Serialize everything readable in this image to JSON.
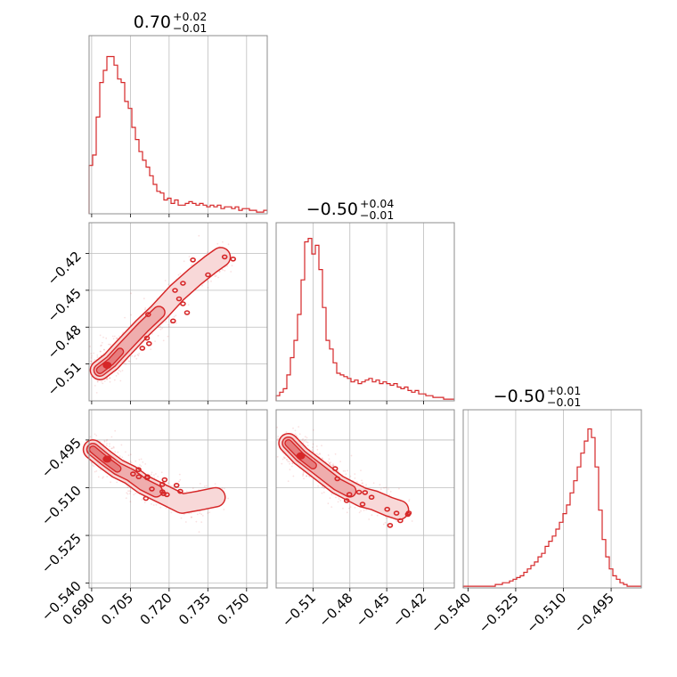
{
  "chart_data": {
    "type": "corner",
    "color": "#d62728",
    "grid": true,
    "parameters": [
      {
        "id": "p0",
        "title": {
          "median": "0.70",
          "upper": "+0.02",
          "lower": "−0.01"
        },
        "range": [
          0.689,
          0.758
        ],
        "ticks": [
          {
            "v": 0.69,
            "label": "0.690"
          },
          {
            "v": 0.705,
            "label": "0.705"
          },
          {
            "v": 0.72,
            "label": "0.720"
          },
          {
            "v": 0.735,
            "label": "0.735"
          },
          {
            "v": 0.75,
            "label": "0.750"
          }
        ],
        "histogram": {
          "start": 0.689,
          "bin_width": 0.00138,
          "counts": [
            0.28,
            0.34,
            0.56,
            0.76,
            0.83,
            0.91,
            0.91,
            0.86,
            0.78,
            0.76,
            0.65,
            0.61,
            0.5,
            0.43,
            0.36,
            0.31,
            0.27,
            0.22,
            0.17,
            0.13,
            0.12,
            0.08,
            0.09,
            0.06,
            0.08,
            0.05,
            0.05,
            0.06,
            0.07,
            0.06,
            0.05,
            0.06,
            0.05,
            0.04,
            0.05,
            0.04,
            0.05,
            0.03,
            0.04,
            0.04,
            0.03,
            0.04,
            0.02,
            0.03,
            0.03,
            0.02,
            0.02,
            0.01,
            0.01,
            0.02
          ]
        }
      },
      {
        "id": "p1",
        "title": {
          "median": "−0.50",
          "upper": "+0.04",
          "lower": "−0.01"
        },
        "range": [
          -0.54,
          -0.395
        ],
        "ticks": [
          {
            "v": -0.51,
            "label": "−0.51"
          },
          {
            "v": -0.48,
            "label": "−0.48"
          },
          {
            "v": -0.45,
            "label": "−0.45"
          },
          {
            "v": -0.42,
            "label": "−0.42"
          }
        ],
        "histogram": {
          "start": -0.54,
          "bin_width": 0.0029,
          "counts": [
            0.03,
            0.05,
            0.07,
            0.15,
            0.25,
            0.35,
            0.5,
            0.7,
            0.92,
            0.94,
            0.85,
            0.9,
            0.76,
            0.54,
            0.35,
            0.3,
            0.22,
            0.16,
            0.15,
            0.14,
            0.13,
            0.11,
            0.12,
            0.1,
            0.11,
            0.12,
            0.13,
            0.11,
            0.12,
            0.1,
            0.11,
            0.1,
            0.09,
            0.1,
            0.08,
            0.07,
            0.08,
            0.06,
            0.05,
            0.06,
            0.04,
            0.04,
            0.03,
            0.03,
            0.02,
            0.02,
            0.02,
            0.01,
            0.01,
            0.01
          ]
        }
      },
      {
        "id": "p2",
        "title": {
          "median": "−0.50",
          "upper": "+0.01",
          "lower": "−0.01"
        },
        "range": [
          -0.5415,
          -0.4855
        ],
        "ticks": [
          {
            "v": -0.54,
            "label": "−0.540"
          },
          {
            "v": -0.525,
            "label": "−0.525"
          },
          {
            "v": -0.51,
            "label": "−0.510"
          },
          {
            "v": -0.495,
            "label": "−0.495"
          }
        ],
        "histogram": {
          "start": -0.5415,
          "bin_width": 0.00112,
          "counts": [
            0.01,
            0.01,
            0.01,
            0.01,
            0.01,
            0.01,
            0.01,
            0.01,
            0.01,
            0.02,
            0.02,
            0.03,
            0.03,
            0.04,
            0.05,
            0.06,
            0.07,
            0.09,
            0.11,
            0.13,
            0.15,
            0.18,
            0.2,
            0.24,
            0.27,
            0.3,
            0.34,
            0.38,
            0.43,
            0.48,
            0.55,
            0.62,
            0.7,
            0.78,
            0.85,
            0.92,
            0.87,
            0.7,
            0.45,
            0.28,
            0.18,
            0.11,
            0.07,
            0.05,
            0.03,
            0.02,
            0.01,
            0.01,
            0.01,
            0.01
          ]
        }
      }
    ],
    "pairs": [
      {
        "x": 0,
        "y": 1,
        "points": [
          [
            0.6932,
            -0.515
          ],
          [
            0.6975,
            -0.508
          ],
          [
            0.701,
            -0.5
          ],
          [
            0.7055,
            -0.49
          ],
          [
            0.71,
            -0.48
          ],
          [
            0.716,
            -0.468
          ],
          [
            0.723,
            -0.452
          ],
          [
            0.73,
            -0.439
          ],
          [
            0.736,
            -0.429
          ],
          [
            0.74,
            -0.423
          ]
        ],
        "center": [
          0.696,
          -0.511
        ]
      },
      {
        "x": 0,
        "y": 2,
        "points": [
          [
            0.6905,
            -0.498
          ],
          [
            0.695,
            -0.501
          ],
          [
            0.7,
            -0.504
          ],
          [
            0.705,
            -0.506
          ],
          [
            0.71,
            -0.509
          ],
          [
            0.715,
            -0.511
          ],
          [
            0.72,
            -0.513
          ],
          [
            0.725,
            -0.515
          ],
          [
            0.732,
            -0.514
          ],
          [
            0.738,
            -0.513
          ]
        ],
        "center": [
          0.696,
          -0.501
        ]
      },
      {
        "x": 1,
        "y": 2,
        "points": [
          [
            -0.53,
            -0.496
          ],
          [
            -0.52,
            -0.5
          ],
          [
            -0.51,
            -0.503
          ],
          [
            -0.5,
            -0.506
          ],
          [
            -0.49,
            -0.509
          ],
          [
            -0.48,
            -0.511
          ],
          [
            -0.47,
            -0.513
          ],
          [
            -0.46,
            -0.514
          ],
          [
            -0.448,
            -0.516
          ],
          [
            -0.44,
            -0.517
          ]
        ],
        "center": [
          -0.52,
          -0.5
        ]
      }
    ]
  }
}
